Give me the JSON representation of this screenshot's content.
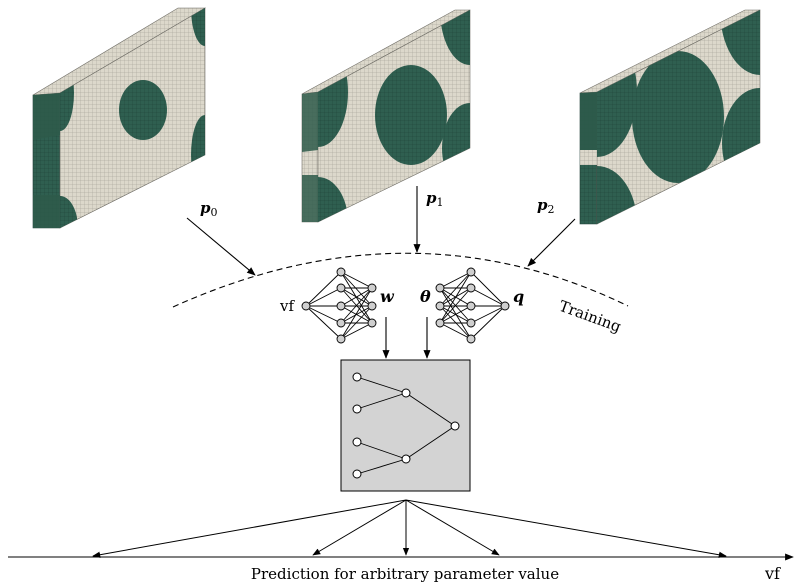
{
  "labels": {
    "p0": "p",
    "p0_sub": "0",
    "p1": "p",
    "p1_sub": "1",
    "p2": "p",
    "p2_sub": "2",
    "training": "Training",
    "vf_input": "vf",
    "w": "w",
    "theta": "θ",
    "q": "q",
    "prediction": "Prediction for arbitrary parameter value",
    "axis_vf": "vf"
  },
  "colors": {
    "mesh_fill": "#d9d6c9",
    "mesh_dark": "#2e5a4a",
    "fiber": "#2f6354",
    "box_fill": "#d3d3d3",
    "node_fill": "#cfcfcf"
  },
  "samples": [
    {
      "name": "sample-p0",
      "fiber_fraction": "small"
    },
    {
      "name": "sample-p1",
      "fiber_fraction": "medium"
    },
    {
      "name": "sample-p2",
      "fiber_fraction": "large"
    }
  ]
}
